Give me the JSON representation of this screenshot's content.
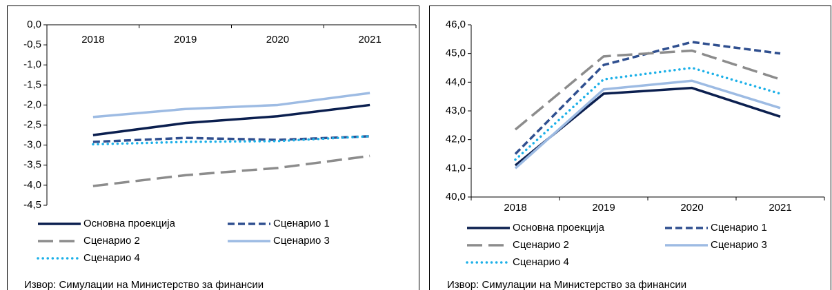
{
  "chart_data": [
    {
      "type": "line",
      "xaxis_position": "top",
      "categories": [
        "2018",
        "2019",
        "2020",
        "2021"
      ],
      "ylim": [
        -4.5,
        0
      ],
      "yticks": [
        {
          "value": 0,
          "label": "0,0"
        },
        {
          "value": -0.5,
          "label": "-0,5"
        },
        {
          "value": -1,
          "label": "-1,0"
        },
        {
          "value": -1.5,
          "label": "-1,5"
        },
        {
          "value": -2,
          "label": "-2,0"
        },
        {
          "value": -2.5,
          "label": "-2,5"
        },
        {
          "value": -3,
          "label": "-3,0"
        },
        {
          "value": -3.5,
          "label": "-3,5"
        },
        {
          "value": -4,
          "label": "-4,0"
        },
        {
          "value": -4.5,
          "label": "-4,5"
        }
      ],
      "series": [
        {
          "name": "Основна проекција",
          "color": "#0b1f4f",
          "dash": "solid",
          "values": [
            -2.75,
            -2.45,
            -2.28,
            -2.0
          ]
        },
        {
          "name": "Сценарио 1",
          "color": "#2f4f8f",
          "dash": "dash",
          "values": [
            -2.92,
            -2.82,
            -2.87,
            -2.78
          ]
        },
        {
          "name": "Сценарио 2",
          "color": "#8c8c8c",
          "dash": "longdash",
          "values": [
            -4.02,
            -3.75,
            -3.57,
            -3.27
          ]
        },
        {
          "name": "Сценарио 3",
          "color": "#9dbbe3",
          "dash": "solid",
          "values": [
            -2.3,
            -2.1,
            -2.0,
            -1.7
          ]
        },
        {
          "name": "Сценарио 4",
          "color": "#1cb0e8",
          "dash": "dot",
          "values": [
            -2.98,
            -2.92,
            -2.9,
            -2.78
          ]
        }
      ],
      "note": "Извор: Симулации на Министерство за финансии"
    },
    {
      "type": "line",
      "xaxis_position": "bottom",
      "categories": [
        "2018",
        "2019",
        "2020",
        "2021"
      ],
      "ylim": [
        40,
        46
      ],
      "yticks": [
        {
          "value": 40,
          "label": "40,0"
        },
        {
          "value": 41,
          "label": "41,0"
        },
        {
          "value": 42,
          "label": "42,0"
        },
        {
          "value": 43,
          "label": "43,0"
        },
        {
          "value": 44,
          "label": "44,0"
        },
        {
          "value": 45,
          "label": "45,0"
        },
        {
          "value": 46,
          "label": "46,0"
        }
      ],
      "series": [
        {
          "name": "Основна проекција",
          "color": "#0b1f4f",
          "dash": "solid",
          "values": [
            41.1,
            43.6,
            43.8,
            42.8
          ]
        },
        {
          "name": "Сценарио 1",
          "color": "#2f4f8f",
          "dash": "dash",
          "values": [
            41.5,
            44.6,
            45.4,
            45.0
          ]
        },
        {
          "name": "Сценарио 2",
          "color": "#8c8c8c",
          "dash": "longdash",
          "values": [
            42.35,
            44.9,
            45.1,
            44.1
          ]
        },
        {
          "name": "Сценарио 3",
          "color": "#9dbbe3",
          "dash": "solid",
          "values": [
            41.0,
            43.75,
            44.05,
            43.1
          ]
        },
        {
          "name": "Сценарио 4",
          "color": "#1cb0e8",
          "dash": "dot",
          "values": [
            41.3,
            44.1,
            44.5,
            43.6
          ]
        }
      ],
      "note": "Извор: Симулации на Министерство за финансии"
    }
  ]
}
